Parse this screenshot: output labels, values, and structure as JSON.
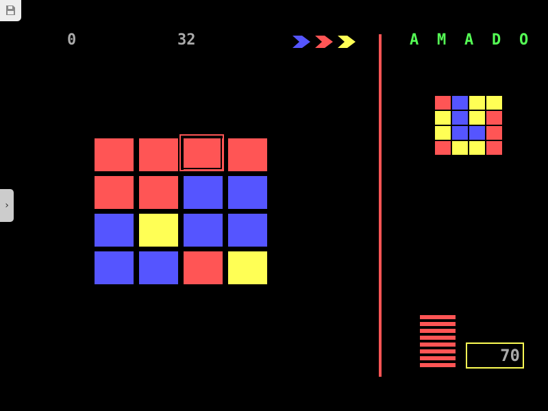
{
  "score": "0",
  "moves": "32",
  "title_letters": [
    "A",
    "M",
    "A",
    "D",
    "O"
  ],
  "counter": "70",
  "arrows": [
    "#5555ff",
    "#ff5555",
    "#ffff55"
  ],
  "colors": {
    "R": "#ff5555",
    "B": "#5555ff",
    "Y": "#ffff55"
  },
  "board": [
    [
      "R",
      "R",
      "R",
      "R"
    ],
    [
      "R",
      "R",
      "B",
      "B"
    ],
    [
      "B",
      "Y",
      "B",
      "B"
    ],
    [
      "B",
      "B",
      "R",
      "Y"
    ]
  ],
  "selected": {
    "row": 0,
    "col": 2
  },
  "target": [
    [
      "R",
      "B",
      "Y",
      "Y"
    ],
    [
      "Y",
      "B",
      "Y",
      "R"
    ],
    [
      "Y",
      "B",
      "B",
      "R"
    ],
    [
      "R",
      "Y",
      "Y",
      "R"
    ]
  ],
  "level_bars": 8,
  "icons": {
    "save": "floppy-disk-icon",
    "expand": "chevron-right-icon"
  }
}
